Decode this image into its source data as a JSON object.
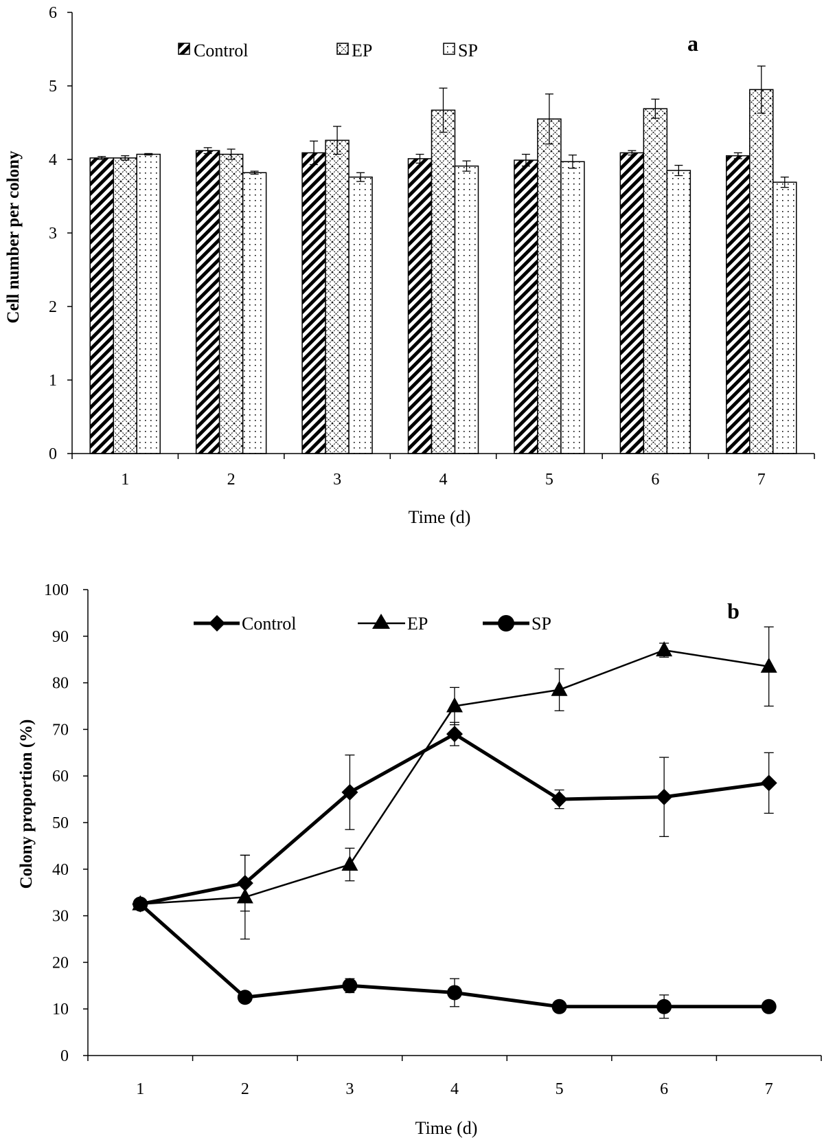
{
  "chart_data": [
    {
      "type": "bar",
      "panel_label": "a",
      "title": "",
      "xlabel": "Time (d)",
      "ylabel": "Cell number per colony",
      "ylim": [
        0,
        6
      ],
      "yticks": [
        "0",
        "1",
        "2",
        "3",
        "4",
        "5",
        "6"
      ],
      "categories": [
        "1",
        "2",
        "3",
        "4",
        "5",
        "6",
        "7"
      ],
      "legend_position": "top",
      "series": [
        {
          "name": "Control",
          "pattern": "diagonal-stripes",
          "values": [
            4.02,
            4.12,
            4.09,
            4.01,
            3.99,
            4.09,
            4.05
          ],
          "errors": [
            0.02,
            0.04,
            0.16,
            0.06,
            0.08,
            0.03,
            0.04
          ]
        },
        {
          "name": "EP",
          "pattern": "crosshatch",
          "values": [
            4.02,
            4.07,
            4.26,
            4.67,
            4.55,
            4.69,
            4.95
          ],
          "errors": [
            0.03,
            0.07,
            0.19,
            0.3,
            0.34,
            0.13,
            0.32
          ]
        },
        {
          "name": "SP",
          "pattern": "dots",
          "values": [
            4.07,
            3.82,
            3.76,
            3.91,
            3.97,
            3.85,
            3.69
          ],
          "errors": [
            0.01,
            0.02,
            0.06,
            0.07,
            0.09,
            0.07,
            0.07
          ]
        }
      ]
    },
    {
      "type": "line",
      "panel_label": "b",
      "title": "",
      "xlabel": "Time (d)",
      "ylabel": "Colony proportion (%)",
      "ylim": [
        0,
        100
      ],
      "yticks": [
        "0",
        "10",
        "20",
        "30",
        "40",
        "50",
        "60",
        "70",
        "80",
        "90",
        "100"
      ],
      "categories": [
        "1",
        "2",
        "3",
        "4",
        "5",
        "6",
        "7"
      ],
      "legend_position": "top",
      "series": [
        {
          "name": "Control",
          "marker": "diamond",
          "values": [
            32.5,
            37.0,
            56.5,
            69.0,
            55.0,
            55.5,
            58.5
          ],
          "errors": [
            0.5,
            6.0,
            8.0,
            2.5,
            2.0,
            8.5,
            6.5
          ]
        },
        {
          "name": "EP",
          "marker": "triangle",
          "values": [
            32.5,
            34.0,
            41.0,
            75.0,
            78.5,
            87.0,
            83.5
          ],
          "errors": [
            0.5,
            9.0,
            3.5,
            4.0,
            4.5,
            1.5,
            8.5
          ]
        },
        {
          "name": "SP",
          "marker": "circle",
          "values": [
            32.5,
            12.5,
            15.0,
            13.5,
            10.5,
            10.5,
            10.5
          ],
          "errors": [
            0.5,
            0.5,
            1.5,
            3.0,
            0.5,
            2.5,
            0.5
          ]
        }
      ]
    }
  ]
}
